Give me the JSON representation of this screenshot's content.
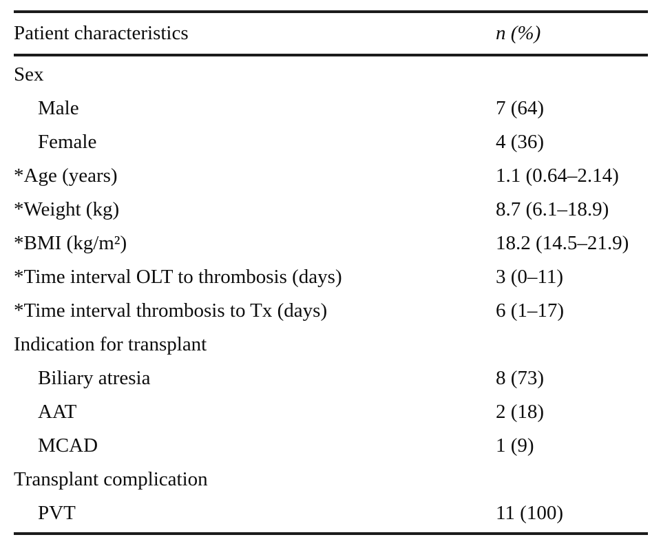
{
  "table": {
    "header": {
      "characteristics": "Patient characteristics",
      "n_pct": "n (%)"
    },
    "rows": [
      {
        "label": "Sex",
        "value": ""
      },
      {
        "label": "Male",
        "value": "7 (64)"
      },
      {
        "label": "Female",
        "value": "4 (36)"
      },
      {
        "label": "*Age (years)",
        "value": "1.1 (0.64–2.14)"
      },
      {
        "label": "*Weight (kg)",
        "value": "8.7 (6.1–18.9)"
      },
      {
        "label": "*BMI (kg/m²)",
        "value": "18.2 (14.5–21.9)"
      },
      {
        "label": "*Time interval OLT to thrombosis (days)",
        "value": "3 (0–11)"
      },
      {
        "label": "*Time interval thrombosis to Tx (days)",
        "value": "6 (1–17)"
      },
      {
        "label": "Indication for transplant",
        "value": ""
      },
      {
        "label": "Biliary atresia",
        "value": "8 (73)"
      },
      {
        "label": "AAT",
        "value": "2 (18)"
      },
      {
        "label": "MCAD",
        "value": "1 (9)"
      },
      {
        "label": "Transplant complication",
        "value": ""
      },
      {
        "label": "PVT",
        "value": "11 (100)"
      }
    ],
    "colors": {
      "rule": "#1c1c1c",
      "text": "#0d0d0d",
      "background": "#ffffff"
    }
  }
}
